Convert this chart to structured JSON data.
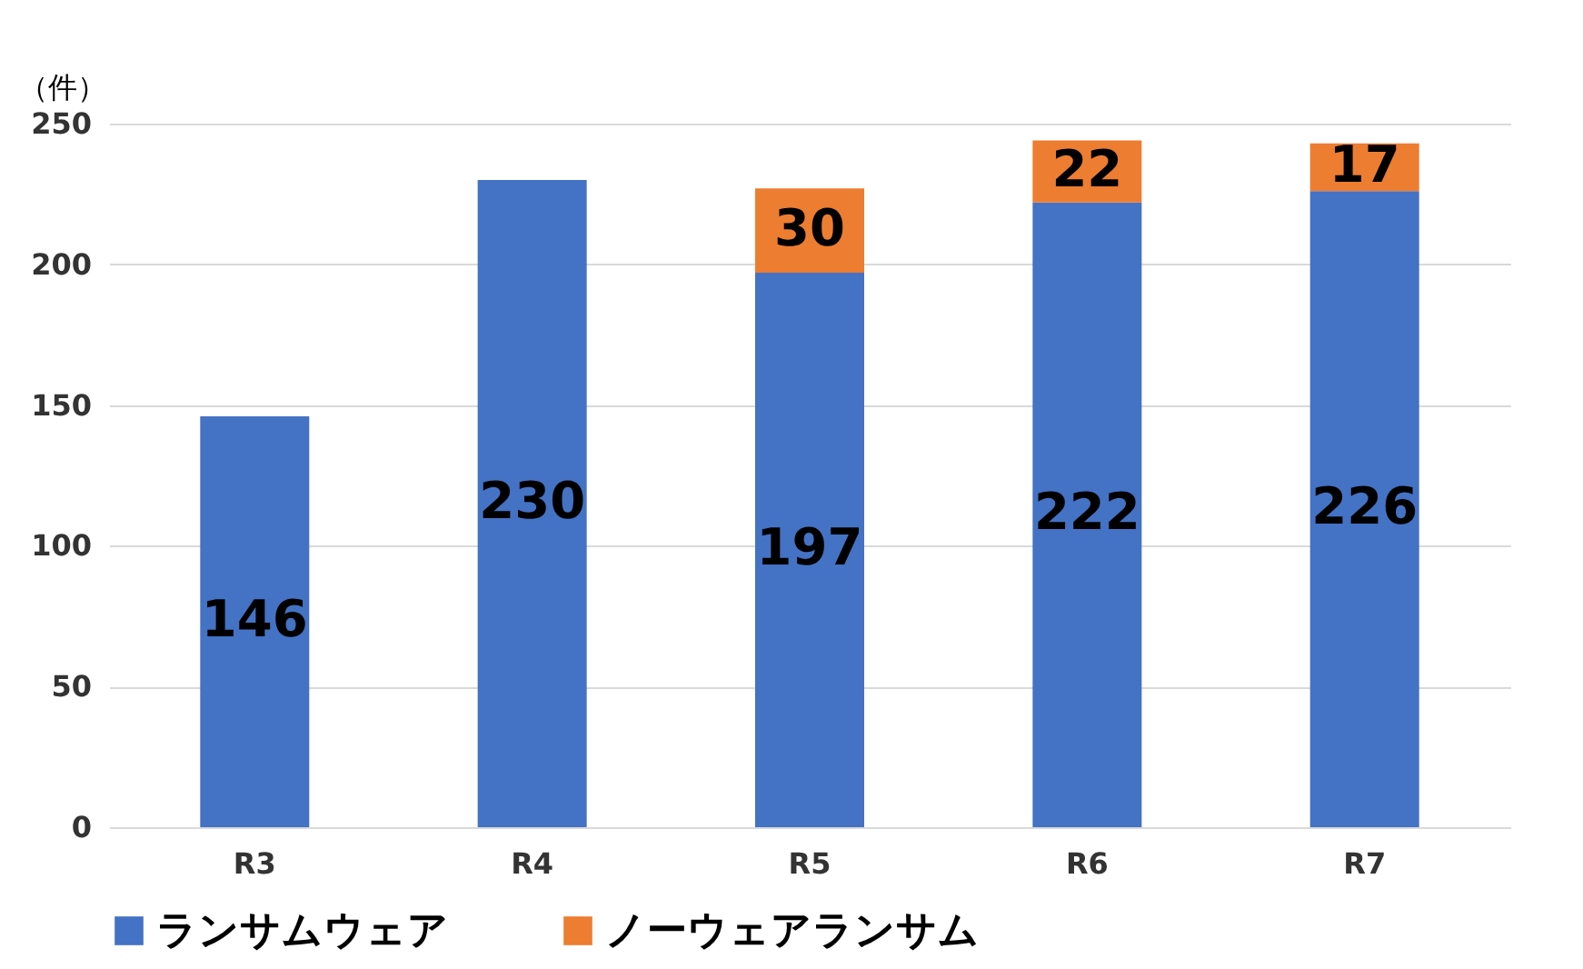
{
  "chart_data": {
    "type": "bar",
    "stacked": true,
    "ylabel": "（件）",
    "categories": [
      "R3",
      "R4",
      "R5",
      "R6",
      "R7"
    ],
    "series": [
      {
        "name": "ランサムウェア",
        "color": "#4472c4",
        "values": [
          146,
          230,
          197,
          222,
          226
        ]
      },
      {
        "name": "ノーウェアランサム",
        "color": "#ed7d31",
        "values": [
          null,
          null,
          30,
          22,
          17
        ]
      }
    ],
    "ylim": [
      0,
      250
    ],
    "yticks": [
      0,
      50,
      100,
      150,
      200,
      250
    ],
    "grid": "y",
    "legend": "bottom",
    "data_labels": true
  }
}
